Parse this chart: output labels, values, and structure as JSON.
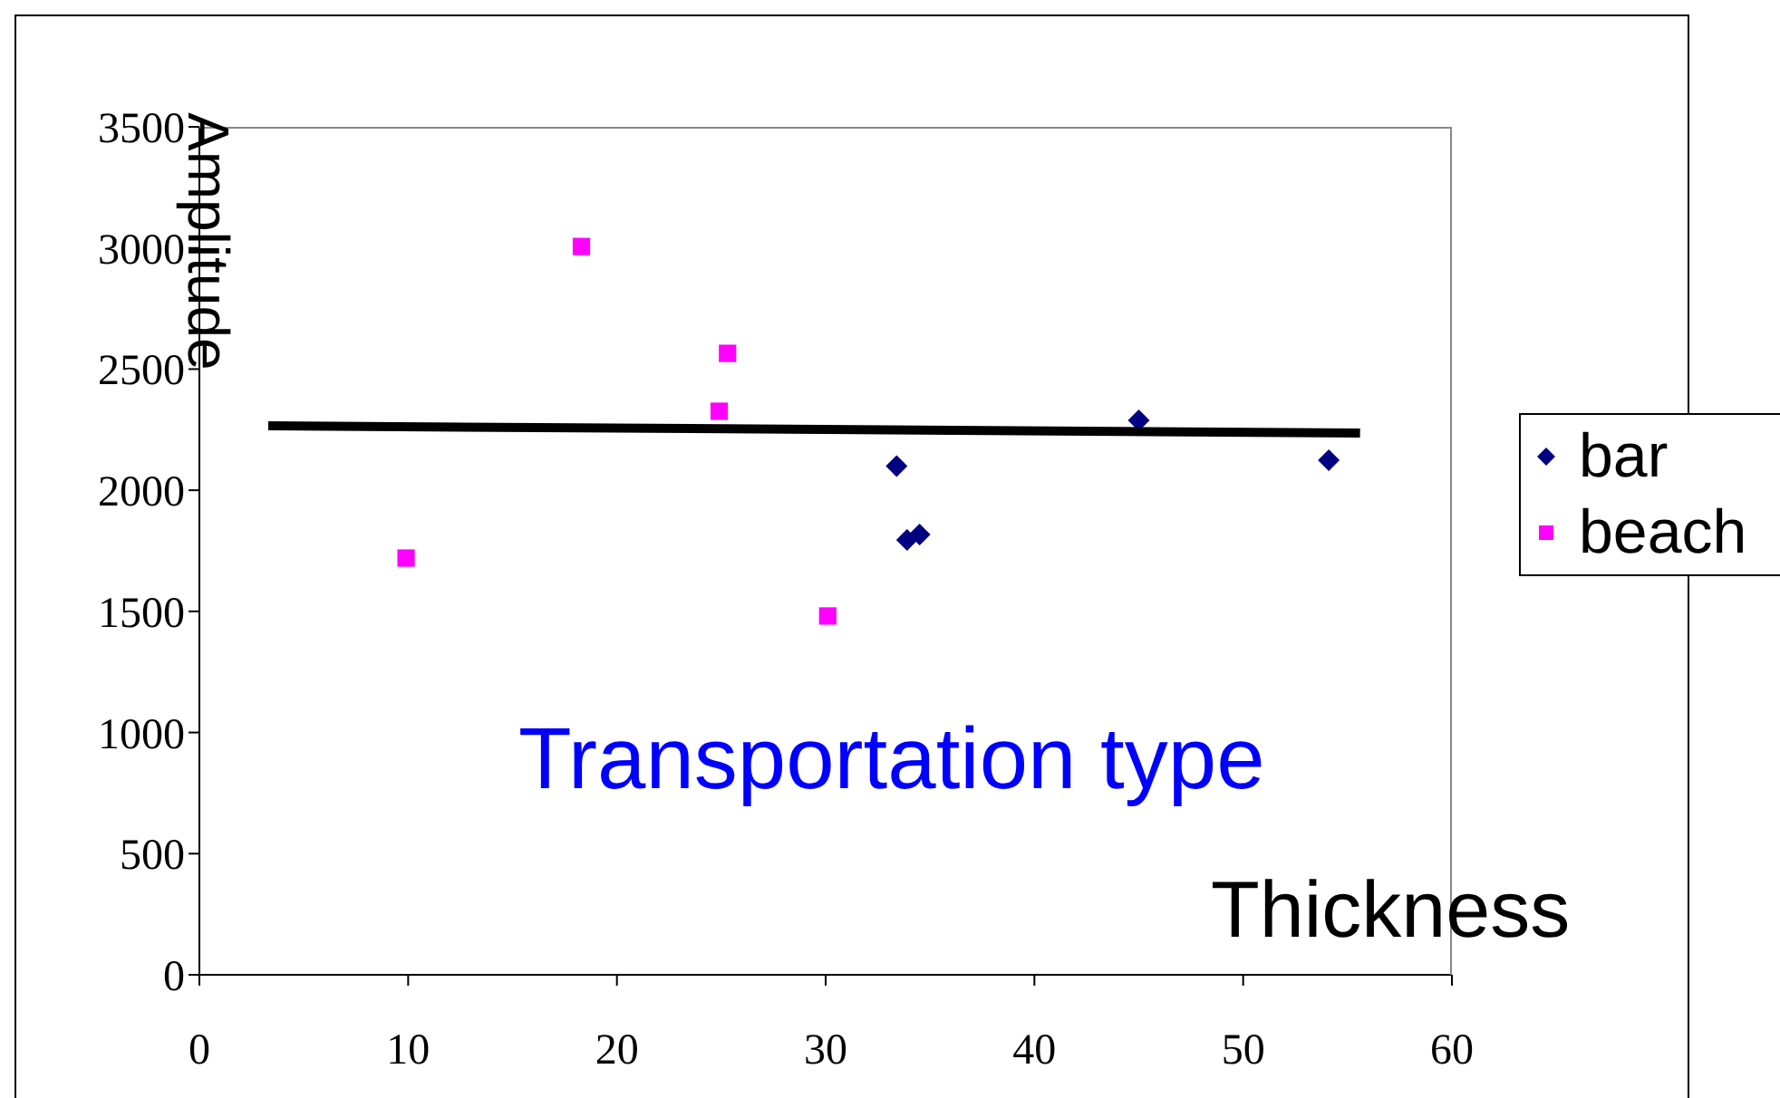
{
  "chart_data": {
    "type": "scatter",
    "xlabel": "Thickness",
    "ylabel": "Amplitude",
    "annotations": [
      "Transportation type"
    ],
    "xlim": [
      0,
      60
    ],
    "xticks": [
      0,
      10,
      20,
      30,
      40,
      50,
      60
    ],
    "ylim": [
      0,
      3500
    ],
    "yticks": [
      0,
      500,
      1000,
      1500,
      2000,
      2500,
      3000,
      3500
    ],
    "grid": false,
    "legend": "right",
    "series": [
      {
        "name": "bar",
        "color": "#000080",
        "marker": "diamond",
        "x": [
          33.4,
          33.9,
          34.5,
          45.0,
          54.1
        ],
        "values": [
          2100,
          1795,
          1817,
          2288,
          2124
        ]
      },
      {
        "name": "beach",
        "color": "#ff00ff",
        "marker": "square",
        "x": [
          9.9,
          18.3,
          25.3,
          24.9,
          30.1
        ],
        "values": [
          1720,
          3006,
          2565,
          2326,
          1481
        ]
      },
      {
        "type": "line",
        "color": "#000000",
        "marker": "none",
        "x": [
          3.3,
          55.6
        ],
        "values": [
          2266,
          2236
        ]
      }
    ]
  }
}
